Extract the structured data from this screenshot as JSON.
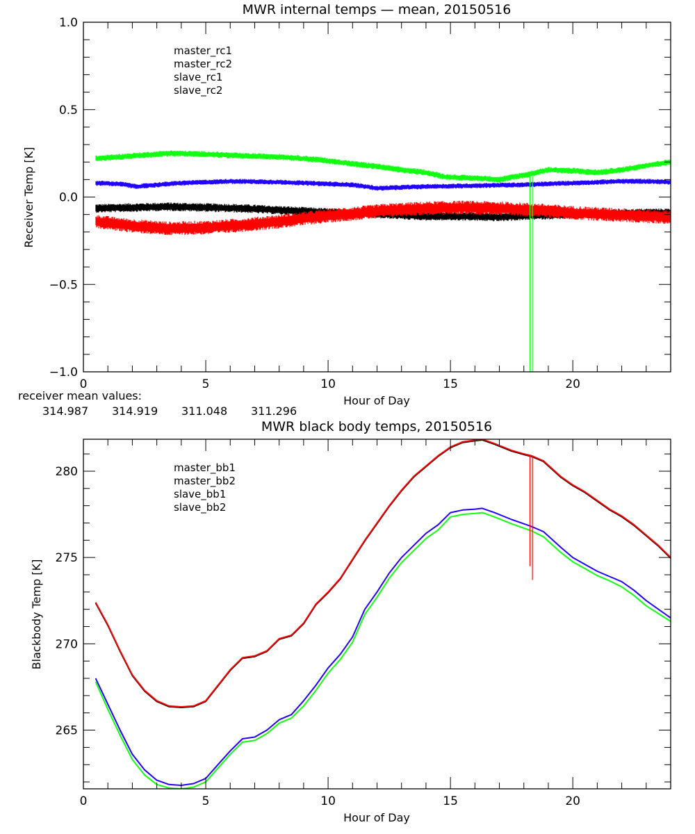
{
  "colors": {
    "black": "#000000",
    "red": "#ff0000",
    "blue": "#2200ff",
    "green": "#11ff11"
  },
  "chart_data": [
    {
      "id": "receiver",
      "type": "line",
      "title": "MWR internal temps — mean, 20150516",
      "xlabel": "Hour of Day",
      "ylabel": "Receiver Temp [K]",
      "xlim": [
        0,
        24
      ],
      "ylim": [
        -1.0,
        1.0
      ],
      "xticks": [
        0,
        5,
        10,
        15,
        20
      ],
      "xtick_labels": [
        "0",
        "5",
        "10",
        "15",
        "20"
      ],
      "x_minor_step": 1,
      "yticks": [
        -1.0,
        -0.5,
        0.0,
        0.5,
        1.0
      ],
      "ytick_labels": [
        "−1.0",
        "−0.5",
        "0.0",
        "0.5",
        "1.0"
      ],
      "y_minor_step": 0.1,
      "grid": false,
      "legend_position": "top-left",
      "noise": true,
      "series": [
        {
          "name": "master_rc1",
          "color": "#000000",
          "noise_amplitude": 0.025,
          "x": [
            0.5,
            2,
            3.5,
            5,
            6.5,
            8,
            9.5,
            11,
            12.5,
            14,
            15.5,
            17,
            18.5,
            20,
            21.5,
            23,
            24
          ],
          "y": [
            -0.065,
            -0.06,
            -0.055,
            -0.06,
            -0.065,
            -0.075,
            -0.085,
            -0.095,
            -0.1,
            -0.11,
            -0.11,
            -0.115,
            -0.105,
            -0.1,
            -0.095,
            -0.09,
            -0.09
          ]
        },
        {
          "name": "master_rc2",
          "color": "#ff0000",
          "noise_amplitude": 0.04,
          "x": [
            0.5,
            2,
            3.5,
            5,
            6.5,
            8,
            9.5,
            11,
            12.5,
            14,
            15.5,
            17,
            18.5,
            20,
            21.5,
            23,
            24
          ],
          "y": [
            -0.14,
            -0.165,
            -0.18,
            -0.175,
            -0.16,
            -0.14,
            -0.115,
            -0.095,
            -0.075,
            -0.065,
            -0.06,
            -0.065,
            -0.075,
            -0.09,
            -0.1,
            -0.11,
            -0.115
          ]
        },
        {
          "name": "slave_rc1",
          "color": "#2200ff",
          "noise_amplitude": 0.015,
          "x": [
            0.5,
            1.5,
            2.2,
            3,
            4,
            5,
            6,
            7,
            8,
            9,
            10,
            11,
            12,
            13,
            14,
            15,
            16,
            17,
            18,
            19,
            20,
            21,
            22,
            23,
            24
          ],
          "y": [
            0.08,
            0.075,
            0.06,
            0.07,
            0.08,
            0.085,
            0.09,
            0.088,
            0.085,
            0.08,
            0.075,
            0.07,
            0.05,
            0.055,
            0.06,
            0.062,
            0.065,
            0.068,
            0.07,
            0.075,
            0.08,
            0.085,
            0.09,
            0.09,
            0.085
          ]
        },
        {
          "name": "slave_rc2",
          "color": "#11ff11",
          "noise_amplitude": 0.018,
          "x": [
            0.5,
            2,
            3.5,
            5,
            6.5,
            8,
            9.5,
            11,
            12,
            13,
            14,
            14.8,
            15.5,
            16.5,
            17,
            18,
            19,
            20,
            21,
            22,
            23,
            24
          ],
          "y": [
            0.22,
            0.235,
            0.25,
            0.245,
            0.235,
            0.23,
            0.215,
            0.19,
            0.175,
            0.155,
            0.14,
            0.115,
            0.11,
            0.105,
            0.1,
            0.125,
            0.155,
            0.15,
            0.14,
            0.155,
            0.18,
            0.2
          ]
        }
      ],
      "spikes": [
        {
          "series": "slave_rc2",
          "x": 18.25,
          "y_from": 0.12,
          "y_to": -1.0
        },
        {
          "series": "slave_rc2",
          "x": 18.35,
          "y_from": 0.12,
          "y_to": -1.0
        }
      ],
      "mean_values_label": "receiver mean values:",
      "mean_values": [
        {
          "series": "master_rc1",
          "value": "314.987",
          "color": "#000000"
        },
        {
          "series": "master_rc2",
          "value": "314.919",
          "color": "#ff0000"
        },
        {
          "series": "slave_rc1",
          "value": "311.048",
          "color": "#2200ff"
        },
        {
          "series": "slave_rc2",
          "value": "311.296",
          "color": "#11ff11"
        }
      ]
    },
    {
      "id": "blackbody",
      "type": "line",
      "title": "MWR black body temps, 20150516",
      "xlabel": "Hour of Day",
      "ylabel": "Blackbody Temp [K]",
      "xlim": [
        0,
        24
      ],
      "ylim": [
        261.6,
        281.85
      ],
      "xticks": [
        0,
        5,
        10,
        15,
        20
      ],
      "xtick_labels": [
        "0",
        "5",
        "10",
        "15",
        "20"
      ],
      "x_minor_step": 1,
      "yticks": [
        265,
        270,
        275,
        280
      ],
      "ytick_labels": [
        "265",
        "270",
        "275",
        "280"
      ],
      "y_minor_step": 1,
      "grid": false,
      "legend_position": "top-left",
      "noise": false,
      "series": [
        {
          "name": "master_bb1",
          "color": "#000000",
          "x": [
            0.5,
            1,
            1.5,
            2,
            2.5,
            3,
            3.5,
            4,
            4.5,
            5,
            5.5,
            6,
            6.5,
            7,
            7.5,
            8,
            8.5,
            9,
            9.5,
            10,
            10.5,
            11,
            11.5,
            12,
            12.5,
            13,
            13.5,
            14,
            14.5,
            15,
            15.5,
            16,
            16.3,
            16.8,
            17.5,
            18,
            18.3,
            18.8,
            19.5,
            20,
            20.5,
            21,
            21.5,
            22,
            22.5,
            23,
            23.5,
            24
          ],
          "y": [
            272.4,
            271.1,
            269.6,
            268.2,
            267.3,
            266.7,
            266.4,
            266.35,
            266.4,
            266.7,
            267.6,
            268.5,
            269.2,
            269.3,
            269.6,
            270.3,
            270.5,
            271.2,
            272.3,
            273.0,
            273.8,
            274.9,
            276.0,
            277.0,
            278.0,
            278.9,
            279.7,
            280.3,
            280.9,
            281.4,
            281.7,
            281.8,
            281.85,
            281.6,
            281.2,
            281.0,
            280.9,
            280.6,
            279.7,
            279.2,
            278.8,
            278.3,
            277.8,
            277.4,
            276.9,
            276.3,
            275.7,
            275.0
          ]
        },
        {
          "name": "master_bb2",
          "color": "#ff0000",
          "x": [
            0.5,
            1,
            1.5,
            2,
            2.5,
            3,
            3.5,
            4,
            4.5,
            5,
            5.5,
            6,
            6.5,
            7,
            7.5,
            8,
            8.5,
            9,
            9.5,
            10,
            10.5,
            11,
            11.5,
            12,
            12.5,
            13,
            13.5,
            14,
            14.5,
            15,
            15.5,
            16,
            16.3,
            16.8,
            17.5,
            18,
            18.3,
            18.8,
            19.5,
            20,
            20.5,
            21,
            21.5,
            22,
            22.5,
            23,
            23.5,
            24
          ],
          "y": [
            272.4,
            271.1,
            269.6,
            268.2,
            267.3,
            266.7,
            266.4,
            266.35,
            266.4,
            266.7,
            267.6,
            268.5,
            269.2,
            269.3,
            269.6,
            270.3,
            270.5,
            271.2,
            272.3,
            273.0,
            273.8,
            274.9,
            276.0,
            277.0,
            278.0,
            278.9,
            279.7,
            280.3,
            280.9,
            281.4,
            281.7,
            281.8,
            281.85,
            281.6,
            281.2,
            281.0,
            280.9,
            280.6,
            279.7,
            279.2,
            278.8,
            278.3,
            277.8,
            277.4,
            276.9,
            276.3,
            275.7,
            275.0
          ]
        },
        {
          "name": "slave_bb1",
          "color": "#2200ff",
          "x": [
            0.5,
            1,
            1.5,
            2,
            2.5,
            3,
            3.5,
            4,
            4.5,
            5,
            5.5,
            6,
            6.5,
            7,
            7.5,
            8,
            8.5,
            9,
            9.5,
            10,
            10.5,
            11,
            11.5,
            12,
            12.5,
            13,
            13.5,
            14,
            14.5,
            15,
            15.5,
            16,
            16.3,
            16.8,
            17.5,
            18,
            18.3,
            18.8,
            19.5,
            20,
            20.5,
            21,
            21.5,
            22,
            22.5,
            23,
            23.5,
            24
          ],
          "y": [
            268.0,
            266.5,
            265.0,
            263.6,
            262.7,
            262.1,
            261.85,
            261.8,
            261.9,
            262.2,
            263.0,
            263.8,
            264.5,
            264.6,
            265.0,
            265.6,
            265.9,
            266.7,
            267.6,
            268.6,
            269.4,
            270.4,
            272.0,
            273.0,
            274.1,
            275.0,
            275.7,
            276.4,
            276.9,
            277.6,
            277.75,
            277.8,
            277.85,
            277.6,
            277.2,
            276.95,
            276.8,
            276.5,
            275.6,
            275.0,
            274.6,
            274.2,
            273.9,
            273.6,
            273.1,
            272.5,
            272.0,
            271.5
          ]
        },
        {
          "name": "slave_bb2",
          "color": "#11ff11",
          "x": [
            0.5,
            1,
            1.5,
            2,
            2.5,
            3,
            3.5,
            4,
            4.5,
            5,
            5.5,
            6,
            6.5,
            7,
            7.5,
            8,
            8.5,
            9,
            9.5,
            10,
            10.5,
            11,
            11.5,
            12,
            12.5,
            13,
            13.5,
            14,
            14.5,
            15,
            15.5,
            16,
            16.3,
            16.8,
            17.5,
            18,
            18.3,
            18.8,
            19.5,
            20,
            20.5,
            21,
            21.5,
            22,
            22.5,
            23,
            23.5,
            24
          ],
          "y": [
            267.8,
            266.2,
            264.7,
            263.3,
            262.4,
            261.85,
            261.65,
            261.6,
            261.7,
            262.0,
            262.8,
            263.6,
            264.3,
            264.4,
            264.8,
            265.4,
            265.7,
            266.4,
            267.3,
            268.3,
            269.1,
            270.1,
            271.7,
            272.7,
            273.8,
            274.7,
            275.4,
            276.1,
            276.6,
            277.35,
            277.5,
            277.55,
            277.6,
            277.35,
            276.95,
            276.7,
            276.55,
            276.2,
            275.3,
            274.75,
            274.35,
            273.95,
            273.65,
            273.3,
            272.8,
            272.2,
            271.75,
            271.3
          ]
        }
      ],
      "spikes": [
        {
          "series": "master_bb2",
          "x": 18.25,
          "y_from": 280.9,
          "y_to": 274.5
        },
        {
          "series": "master_bb2",
          "x": 18.35,
          "y_from": 280.85,
          "y_to": 273.7
        }
      ]
    }
  ]
}
